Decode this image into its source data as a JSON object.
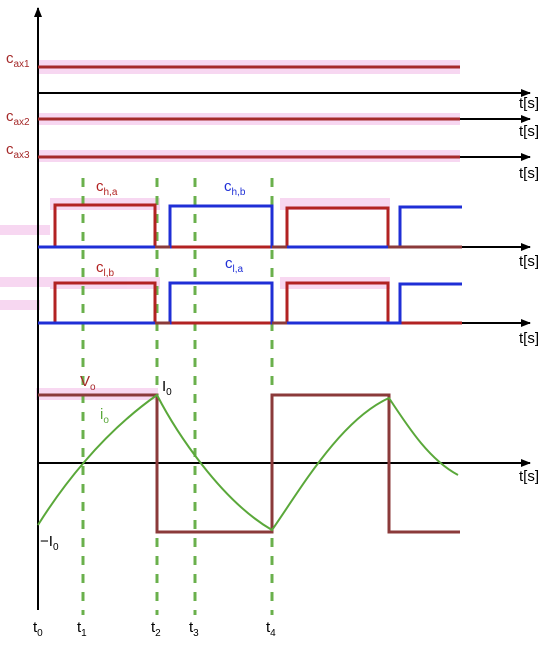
{
  "colors": {
    "axis": "#000000",
    "red": "#c0392b",
    "darkred": "#8b2a2a",
    "blue": "#1f2fd6",
    "green": "#5aa83a",
    "greendash": "#6ab04c",
    "pink": "#f2b8e6"
  },
  "labels": {
    "c_ax1": {
      "main": "c",
      "sub": "ax1"
    },
    "c_ax2": {
      "main": "c",
      "sub": "ax2"
    },
    "c_ax3": {
      "main": "c",
      "sub": "ax3"
    },
    "c_ha": {
      "main": "c",
      "sub": "h,a"
    },
    "c_hb": {
      "main": "c",
      "sub": "h,b"
    },
    "c_lb": {
      "main": "c",
      "sub": "l,b"
    },
    "c_la": {
      "main": "c",
      "sub": "l,a"
    },
    "vo": {
      "main": "V",
      "sub": "o"
    },
    "io": {
      "main": "i",
      "sub": "o"
    },
    "i0_top": {
      "main": "I",
      "sub": "0"
    },
    "i0_neg": {
      "main": "−I",
      "sub": "0"
    },
    "t_axis": "t[s]",
    "t0": {
      "main": "t",
      "sub": "0"
    },
    "t1": {
      "main": "t",
      "sub": "1"
    },
    "t2": {
      "main": "t",
      "sub": "2"
    },
    "t3": {
      "main": "t",
      "sub": "3"
    },
    "t4": {
      "main": "t",
      "sub": "4"
    }
  }
}
